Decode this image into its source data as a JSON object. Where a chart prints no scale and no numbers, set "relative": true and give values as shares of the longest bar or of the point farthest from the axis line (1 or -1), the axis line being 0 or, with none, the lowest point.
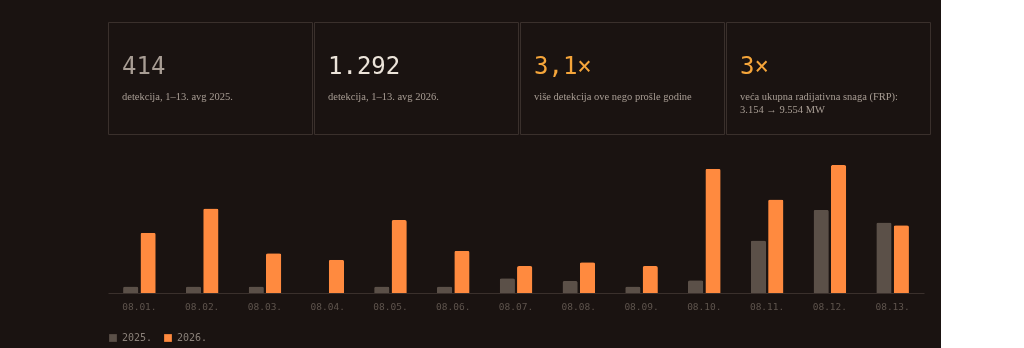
{
  "chart_data": [
    {
      "type": "other",
      "title": "414",
      "subtitle": [
        "detekcija, 1–13. avg 2025."
      ]
    },
    {
      "type": "other",
      "title": "1.292",
      "subtitle": [
        "detekcija, 1–13. avg 2026."
      ]
    },
    {
      "type": "other",
      "title": "3,1×",
      "subtitle": [
        "više detekcija ove nego prošle godine"
      ]
    },
    {
      "type": "other",
      "title": "3×",
      "subtitle": [
        "veća ukupna radijativna snaga (FRP):",
        "3.154 → 9.554 MW"
      ]
    },
    {
      "type": "bar",
      "relative": true,
      "legend": "bottom left",
      "grid": false,
      "categories": [
        "08.01.",
        "08.02.",
        "08.03.",
        "08.04.",
        "08.05.",
        "08.06.",
        "08.07.",
        "08.08.",
        "08.09.",
        "08.10.",
        "08.11.",
        "08.12.",
        "08.13."
      ],
      "series": [
        {
          "name": "2025.",
          "color": "#5b5048",
          "values": [
            0.05,
            0.05,
            0.05,
            null,
            0.05,
            0.05,
            0.115,
            0.094,
            0.05,
            0.1,
            0.41,
            0.65,
            0.55
          ]
        },
        {
          "name": "2026.",
          "color": "#ff8a3f",
          "values": [
            0.47,
            0.66,
            0.31,
            0.26,
            0.57,
            0.33,
            0.21,
            0.24,
            0.21,
            0.97,
            0.73,
            1.0,
            0.53
          ]
        }
      ]
    }
  ]
}
